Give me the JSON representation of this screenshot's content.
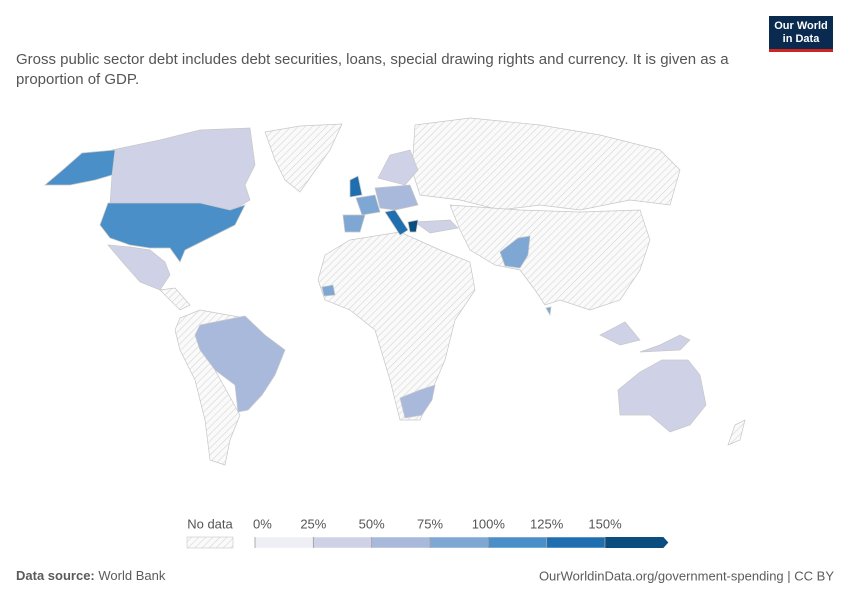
{
  "header": {
    "logo": [
      "Our World",
      "in Data"
    ],
    "subtitle": "Gross public sector debt includes debt securities, loans, special drawing rights and currency. It is given as a proportion of GDP."
  },
  "legend": {
    "no_data": "No data",
    "ticks": [
      {
        "value": 0,
        "label": "0%"
      },
      {
        "value": 25,
        "label": "25%"
      },
      {
        "value": 50,
        "label": "50%"
      },
      {
        "value": 75,
        "label": "75%"
      },
      {
        "value": 100,
        "label": "100%"
      },
      {
        "value": 125,
        "label": "125%"
      },
      {
        "value": 150,
        "label": "150%"
      }
    ],
    "colors": [
      "#eeeef5",
      "#cfd2e6",
      "#a9b9dc",
      "#7ea8d3",
      "#4a8fc7",
      "#1f6fb0",
      "#0b4d7e"
    ]
  },
  "footer": {
    "source_label": "Data source:",
    "source": "World Bank",
    "url": "OurWorldinData.org/government-spending | CC BY"
  }
}
